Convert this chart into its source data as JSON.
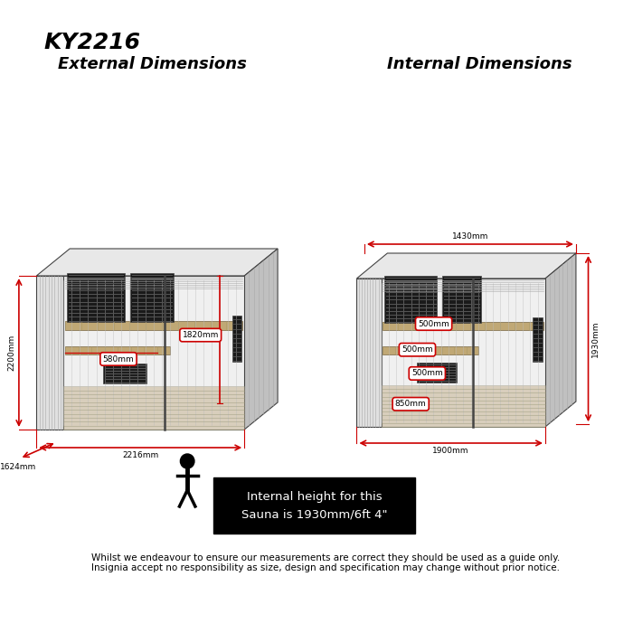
{
  "title": "KY2216",
  "left_title": "External Dimensions",
  "right_title": "Internal Dimensions",
  "bg_color": "#ffffff",
  "title_fontsize": 18,
  "subtitle_fontsize": 13,
  "red_color": "#cc0000",
  "external_dims": {
    "height_label": "2200mm",
    "width_label": "2216mm",
    "depth_label": "1624mm",
    "bench_height_label": "1820mm",
    "bench_depth_label": "580mm"
  },
  "internal_dims": {
    "top_width_label": "1430mm",
    "height_label": "1930mm",
    "bench_depth1_label": "500mm",
    "bench_depth2_label": "500mm",
    "lower_depth_label": "500mm",
    "floor_label": "850mm",
    "bottom_width_label": "1900mm"
  },
  "info_box_text": "Internal height for this\nSauna is 1930mm/6ft 4\"",
  "info_box_bg": "#000000",
  "info_box_fg": "#ffffff",
  "disclaimer_line1": "Whilst we endeavour to ensure our measurements are correct they should be used as a guide only.",
  "disclaimer_line2": "Insignia accept no responsibility as size, design and specification may change without prior notice.",
  "disclaimer_fontsize": 7.5
}
